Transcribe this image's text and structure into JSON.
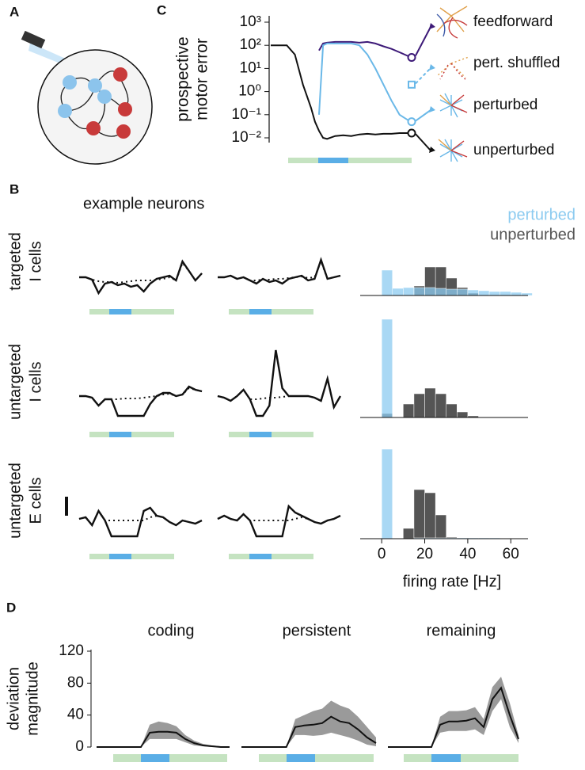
{
  "panel_labels": [
    "A",
    "B",
    "C",
    "D"
  ],
  "chart_data": [
    {
      "type": "line",
      "log": true,
      "ylabel": [
        "prospective",
        "motor error"
      ],
      "x": [
        0,
        4,
        6,
        8,
        10,
        11,
        12,
        13,
        14,
        16,
        18,
        20,
        22,
        24,
        26,
        28,
        30,
        32,
        34,
        35
      ],
      "xlim": [
        0,
        35
      ],
      "ylim": [
        0.01,
        1000
      ],
      "yticks": [
        {
          "value": 1000,
          "label": "10³"
        },
        {
          "value": 100,
          "label": "10²"
        },
        {
          "value": 10,
          "label": "10¹"
        },
        {
          "value": 1,
          "label": "10⁰"
        },
        {
          "value": 0.1,
          "label": "10⁻¹"
        },
        {
          "value": 0.01,
          "label": "10⁻²"
        }
      ],
      "series": [
        {
          "name": "feedforward",
          "color": "#3d1a78",
          "marker": "circle",
          "values": [
            null,
            null,
            null,
            null,
            null,
            null,
            60,
            120,
            130,
            140,
            140,
            140,
            130,
            140,
            120,
            90,
            70,
            50,
            35,
            30
          ]
        },
        {
          "name": "pert. shuffled",
          "color": "#6ab8e8",
          "marker": "square",
          "dashed": true,
          "values": [
            null,
            null,
            null,
            null,
            null,
            null,
            null,
            null,
            null,
            null,
            null,
            null,
            null,
            null,
            null,
            null,
            null,
            null,
            null,
            2
          ]
        },
        {
          "name": "perturbed",
          "color": "#6ab8e8",
          "marker": "circle",
          "values": [
            null,
            null,
            null,
            null,
            null,
            null,
            0.1,
            100,
            120,
            120,
            120,
            120,
            100,
            40,
            10,
            2,
            0.4,
            0.1,
            0.06,
            0.05
          ]
        },
        {
          "name": "unperturbed",
          "color": "#111111",
          "marker": "circle",
          "values": [
            100,
            100,
            40,
            2,
            0.2,
            0.05,
            0.02,
            0.01,
            0.009,
            0.012,
            0.013,
            0.012,
            0.014,
            0.015,
            0.014,
            0.015,
            0.015,
            0.016,
            0.016,
            0.016
          ]
        }
      ]
    },
    {
      "type": "traces",
      "title": "example neurons",
      "row_labels": [
        [
          "targeted",
          "I cells"
        ],
        [
          "untargeted",
          "I cells"
        ],
        [
          "untargeted",
          "E cells"
        ]
      ],
      "traces": [
        [
          {
            "values": [
              0,
              0,
              -3,
              -20,
              -8,
              -6,
              -10,
              -8,
              -12,
              -10,
              -18,
              -8,
              -2,
              0,
              2,
              -4,
              20,
              8,
              -4,
              5
            ],
            "reference": [
              0,
              0,
              -3,
              -5,
              -6,
              -6,
              -7,
              -6,
              -5,
              -4,
              -4,
              -4,
              -3,
              -2,
              0,
              -4,
              18,
              8,
              -4,
              5
            ]
          },
          {
            "values": [
              0,
              0,
              2,
              -2,
              0,
              -4,
              -8,
              -2,
              -6,
              -4,
              -8,
              -2,
              0,
              2,
              -4,
              -2,
              22,
              -2,
              0,
              2
            ],
            "reference": [
              0,
              0,
              2,
              -2,
              0,
              -4,
              -4,
              -3,
              -3,
              -2,
              -2,
              -1,
              0,
              1,
              -1,
              0,
              20,
              -2,
              0,
              2
            ]
          }
        ],
        [
          {
            "values": [
              0,
              0,
              -2,
              -12,
              -4,
              -4,
              -25,
              -25,
              -25,
              -25,
              -25,
              -10,
              0,
              4,
              4,
              0,
              2,
              12,
              8,
              6
            ],
            "reference": [
              0,
              0,
              -2,
              -12,
              -4,
              -4,
              -4,
              -3,
              -3,
              -3,
              -2,
              -1,
              0,
              2,
              3,
              0,
              2,
              10,
              8,
              6
            ]
          },
          {
            "values": [
              0,
              -2,
              -6,
              0,
              8,
              -4,
              -25,
              -25,
              -12,
              58,
              10,
              0,
              0,
              0,
              0,
              -2,
              -6,
              22,
              -14,
              0
            ],
            "reference": [
              0,
              -2,
              -6,
              0,
              8,
              -4,
              -4,
              -3,
              -2,
              -2,
              -1,
              0,
              0,
              0,
              0,
              -2,
              -6,
              22,
              -14,
              0
            ]
          }
        ],
        [
          {
            "values": [
              0,
              2,
              -8,
              10,
              -2,
              -22,
              -22,
              -22,
              -22,
              -22,
              10,
              14,
              4,
              2,
              -4,
              -8,
              -2,
              -4,
              -6,
              -2
            ],
            "reference": [
              0,
              2,
              -8,
              10,
              -2,
              -2,
              -2,
              -2,
              -2,
              -2,
              -2,
              2,
              4,
              2,
              -4,
              -8,
              -2,
              -4,
              -6,
              -2
            ]
          },
          {
            "values": [
              0,
              4,
              0,
              -2,
              6,
              -2,
              -22,
              -22,
              -22,
              -22,
              -22,
              16,
              8,
              4,
              0,
              -4,
              -6,
              -2,
              0,
              4
            ],
            "reference": [
              0,
              4,
              0,
              -2,
              6,
              -2,
              -2,
              -2,
              -2,
              -2,
              -2,
              -2,
              0,
              2,
              0,
              -4,
              -6,
              -2,
              0,
              4
            ]
          }
        ]
      ]
    },
    {
      "type": "histogram",
      "xlabel": "firing rate [Hz]",
      "bins": [
        0,
        5,
        10,
        15,
        20,
        25,
        30,
        35,
        40,
        45,
        50,
        55,
        60,
        65,
        70
      ],
      "xlim": [
        -10,
        68
      ],
      "xticks": [
        0,
        20,
        40,
        60
      ],
      "ylim": [
        0,
        130
      ],
      "series": [
        {
          "name": "unperturbed",
          "color": "#555555",
          "values": [
            [
              0,
              0,
              0,
              12,
              36,
              36,
              22,
              10,
              3,
              0,
              0,
              0,
              0,
              0
            ],
            [
              5,
              0,
              17,
              30,
              37,
              30,
              17,
              7,
              2,
              0,
              0,
              0,
              0,
              0
            ],
            [
              0,
              0,
              13,
              62,
              58,
              30,
              2,
              0,
              0,
              0,
              0,
              0,
              0,
              0
            ]
          ]
        },
        {
          "name": "perturbed",
          "color": "#8ccbf0",
          "values": [
            [
              32,
              9,
              10,
              10,
              10,
              9,
              8,
              8,
              7,
              6,
              5,
              5,
              4,
              3
            ],
            [
              124,
              0,
              0,
              0,
              0,
              0,
              0,
              0,
              0,
              0,
              0,
              0,
              0,
              0
            ],
            [
              113,
              0,
              0,
              1,
              1,
              1,
              1,
              1,
              1,
              1,
              1,
              0,
              0,
              0
            ]
          ]
        }
      ]
    },
    {
      "type": "band",
      "ylabel": [
        "deviation",
        "magnitude"
      ],
      "ylim": [
        0,
        120
      ],
      "yticks": [
        0,
        40,
        80,
        120
      ],
      "panels": [
        {
          "title": "coding",
          "values": [
            0,
            0,
            0,
            0,
            0,
            0,
            18,
            19,
            19,
            18,
            10,
            5,
            2,
            1,
            0,
            0
          ],
          "upper": [
            0,
            0,
            0,
            0,
            0,
            0,
            28,
            32,
            30,
            26,
            15,
            8,
            4,
            2,
            1,
            0
          ],
          "lower": [
            0,
            0,
            0,
            0,
            0,
            0,
            10,
            10,
            10,
            10,
            6,
            2,
            1,
            0,
            0,
            0
          ]
        },
        {
          "title": "persistent",
          "values": [
            0,
            0,
            0,
            0,
            0,
            0,
            25,
            27,
            28,
            30,
            38,
            32,
            30,
            22,
            12,
            5
          ],
          "upper": [
            0,
            0,
            0,
            0,
            0,
            0,
            35,
            40,
            45,
            48,
            58,
            52,
            48,
            38,
            25,
            12
          ],
          "lower": [
            0,
            0,
            0,
            0,
            0,
            0,
            15,
            15,
            14,
            15,
            18,
            15,
            12,
            8,
            3,
            1
          ]
        },
        {
          "title": "remaining",
          "values": [
            0,
            0,
            0,
            0,
            0,
            0,
            28,
            32,
            32,
            33,
            36,
            25,
            60,
            74,
            40,
            10
          ],
          "upper": [
            0,
            0,
            0,
            0,
            0,
            0,
            38,
            45,
            45,
            46,
            50,
            35,
            75,
            88,
            55,
            15
          ],
          "lower": [
            0,
            0,
            0,
            0,
            0,
            0,
            18,
            20,
            20,
            20,
            22,
            15,
            45,
            60,
            25,
            5
          ]
        }
      ]
    }
  ]
}
